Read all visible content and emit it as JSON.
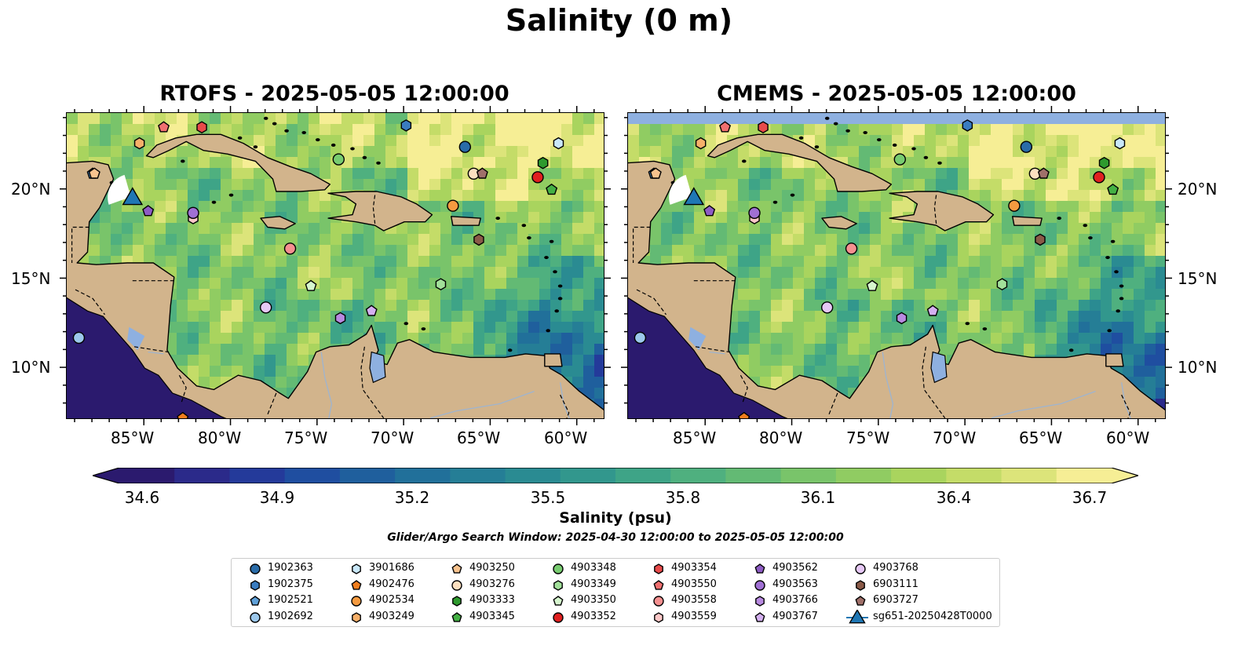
{
  "figure": {
    "suptitle": "Salinity (0 m)",
    "panels": [
      {
        "title": "RTOFS - 2025-05-05 12:00:00"
      },
      {
        "title": "CMEMS - 2025-05-05 12:00:00"
      }
    ],
    "search_window": "Glider/Argo Search Window: 2025-04-30 12:00:00 to 2025-05-05 12:00:00"
  },
  "map_extent": {
    "lon_min": -89.5,
    "lon_max": -58.4,
    "lat_min": 7.1,
    "lat_max": 24.3
  },
  "lat_ticks": [
    {
      "value": 20,
      "label": "20°N"
    },
    {
      "value": 15,
      "label": "15°N"
    },
    {
      "value": 10,
      "label": "10°N"
    }
  ],
  "lon_ticks": [
    {
      "value": -85,
      "label": "85°W"
    },
    {
      "value": -80,
      "label": "80°W"
    },
    {
      "value": -75,
      "label": "75°W"
    },
    {
      "value": -70,
      "label": "70°W"
    },
    {
      "value": -65,
      "label": "65°W"
    },
    {
      "value": -60,
      "label": "60°W"
    }
  ],
  "colorbar": {
    "label": "Salinity (psu)",
    "min": 34.6,
    "max": 36.7,
    "ticks": [
      "34.6",
      "34.9",
      "35.2",
      "35.5",
      "35.8",
      "36.1",
      "36.4",
      "36.7"
    ],
    "colors": [
      "#2b1a6e",
      "#2b2a8a",
      "#243a9a",
      "#1f4ea0",
      "#1f5f9d",
      "#21709a",
      "#257e96",
      "#2a8b92",
      "#32978d",
      "#3ea487",
      "#4fb07f",
      "#63ba74",
      "#79c46a",
      "#90cc62",
      "#a9d45e",
      "#c4dc68",
      "#dce47a",
      "#f6ee95"
    ],
    "land": "#d2b48c",
    "lake": "#8eb0e0"
  },
  "platforms": [
    {
      "id": "1902363",
      "marker": "circle",
      "color": "#2a6ca8",
      "lon": -66.5,
      "lat": 22.4
    },
    {
      "id": "1902375",
      "marker": "hexagon",
      "color": "#3a7cc0",
      "lon": -69.9,
      "lat": 23.6
    },
    {
      "id": "1902521",
      "marker": "pentagon",
      "color": "#5fa0d8",
      "lon": -88.0,
      "lat": 20.9
    },
    {
      "id": "1902692",
      "marker": "circle",
      "color": "#9cc8ec",
      "lon": -88.8,
      "lat": 11.7
    },
    {
      "id": "3901686",
      "marker": "hexagon",
      "color": "#c9e8fa",
      "lon": -61.1,
      "lat": 22.6
    },
    {
      "id": "4902476",
      "marker": "pentagon",
      "color": "#f07e1e",
      "lon": -82.8,
      "lat": 7.2
    },
    {
      "id": "4902534",
      "marker": "circle",
      "color": "#f59a40",
      "lon": -67.2,
      "lat": 19.1
    },
    {
      "id": "4903249",
      "marker": "hexagon",
      "color": "#f7b06a",
      "lon": -85.3,
      "lat": 22.6
    },
    {
      "id": "4903250",
      "marker": "pentagon",
      "color": "#f8c38e",
      "lon": -87.9,
      "lat": 20.9
    },
    {
      "id": "4903276",
      "marker": "circle",
      "color": "#fde0c0",
      "lon": -66.0,
      "lat": 20.9
    },
    {
      "id": "4903333",
      "marker": "hexagon",
      "color": "#2e9a2e",
      "lon": -62.0,
      "lat": 21.5
    },
    {
      "id": "4903345",
      "marker": "pentagon",
      "color": "#44b044",
      "lon": -61.5,
      "lat": 20.0
    },
    {
      "id": "4903348",
      "marker": "circle",
      "color": "#78cc70",
      "lon": -73.8,
      "lat": 21.7
    },
    {
      "id": "4903349",
      "marker": "hexagon",
      "color": "#a2e09a",
      "lon": -67.9,
      "lat": 14.7
    },
    {
      "id": "4903350",
      "marker": "pentagon",
      "color": "#d6f6ce",
      "lon": -75.4,
      "lat": 14.6
    },
    {
      "id": "4903352",
      "marker": "circle",
      "color": "#e02020",
      "lon": -62.3,
      "lat": 20.7
    },
    {
      "id": "4903354",
      "marker": "hexagon",
      "color": "#e84a4a",
      "lon": -81.7,
      "lat": 23.5
    },
    {
      "id": "4903550",
      "marker": "pentagon",
      "color": "#f07070",
      "lon": -83.9,
      "lat": 23.5
    },
    {
      "id": "4903558",
      "marker": "circle",
      "color": "#f59090",
      "lon": -76.6,
      "lat": 16.7
    },
    {
      "id": "4903559",
      "marker": "hexagon",
      "color": "#fcc8c8",
      "lon": -82.2,
      "lat": 18.4
    },
    {
      "id": "4903562",
      "marker": "pentagon",
      "color": "#8e5cc4",
      "lon": -84.8,
      "lat": 18.8
    },
    {
      "id": "4903563",
      "marker": "circle",
      "color": "#a070d4",
      "lon": -82.2,
      "lat": 18.7
    },
    {
      "id": "4903766",
      "marker": "hexagon",
      "color": "#b88ae0",
      "lon": -73.7,
      "lat": 12.8
    },
    {
      "id": "4903767",
      "marker": "pentagon",
      "color": "#d4b0f0",
      "lon": -71.9,
      "lat": 13.2
    },
    {
      "id": "4903768",
      "marker": "circle",
      "color": "#e6c8f6",
      "lon": -78.0,
      "lat": 13.4
    },
    {
      "id": "6903111",
      "marker": "hexagon",
      "color": "#8a5a48",
      "lon": -65.7,
      "lat": 17.2
    },
    {
      "id": "6903727",
      "marker": "pentagon",
      "color": "#a0706a",
      "lon": -65.5,
      "lat": 20.9
    },
    {
      "id": "sg651-20250428T0000",
      "marker": "triangle",
      "color": "#1f77b4",
      "lon": -85.7,
      "lat": 19.6
    }
  ]
}
